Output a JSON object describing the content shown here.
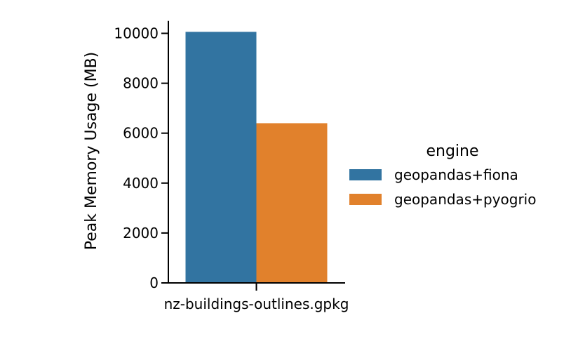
{
  "chart_data": {
    "type": "bar",
    "categories": [
      "nz-buildings-outlines.gpkg"
    ],
    "series": [
      {
        "name": "geopandas+fiona",
        "values": [
          10060
        ],
        "color": "#3274a1"
      },
      {
        "name": "geopandas+pyogrio",
        "values": [
          6400
        ],
        "color": "#e1812c"
      }
    ],
    "xlabel": "",
    "ylabel": "Peak Memory Usage (MB)",
    "ylim": [
      0,
      10500
    ],
    "yticks": [
      0,
      2000,
      4000,
      6000,
      8000,
      10000
    ],
    "grid": false,
    "legend": {
      "title": "engine",
      "position": "right"
    }
  }
}
